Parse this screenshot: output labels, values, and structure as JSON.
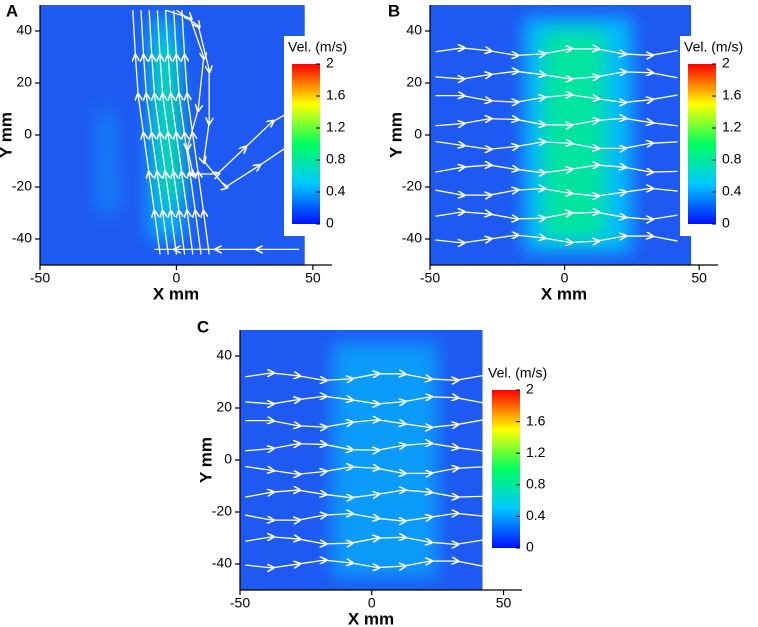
{
  "chart_data": [
    {
      "type": "contour",
      "panel_label": "A",
      "xlabel": "X mm",
      "ylabel": "Y mm",
      "xlim": [
        -50,
        57
      ],
      "ylim": [
        -50,
        50
      ],
      "xticks": [
        -50,
        0,
        50
      ],
      "yticks": [
        -40,
        -20,
        0,
        20,
        40
      ],
      "colorbar": {
        "title": "Vel. (m/s)",
        "lim": [
          0,
          2
        ],
        "ticks": [
          0,
          0.4,
          0.8,
          1.2,
          1.6,
          2
        ],
        "colormap": [
          "#0010ff",
          "#00c8ff",
          "#00ff60",
          "#ffff00",
          "#ff0000"
        ]
      }
    },
    {
      "type": "contour",
      "panel_label": "B",
      "xlabel": "X mm",
      "ylabel": "Y mm",
      "xlim": [
        -50,
        57
      ],
      "ylim": [
        -50,
        50
      ],
      "xticks": [
        -50,
        0,
        50
      ],
      "yticks": [
        -40,
        -20,
        0,
        20,
        40
      ],
      "colorbar": {
        "title": "Vel. (m/s)",
        "lim": [
          0,
          2
        ],
        "ticks": [
          0,
          0.4,
          0.8,
          1.2,
          1.6,
          2
        ],
        "colormap": [
          "#0010ff",
          "#00c8ff",
          "#00ff60",
          "#ffff00",
          "#ff0000"
        ]
      }
    },
    {
      "type": "contour",
      "panel_label": "C",
      "xlabel": "X mm",
      "ylabel": "Y mm",
      "xlim": [
        -50,
        57
      ],
      "ylim": [
        -50,
        50
      ],
      "xticks": [
        -50,
        0,
        50
      ],
      "yticks": [
        -40,
        -20,
        0,
        20,
        40
      ],
      "colorbar": {
        "title": "Vel. (m/s)",
        "lim": [
          0,
          2
        ],
        "ticks": [
          0,
          0.4,
          0.8,
          1.2,
          1.6,
          2
        ],
        "colormap": [
          "#0010ff",
          "#00c8ff",
          "#00ff60",
          "#ffff00",
          "#ff0000"
        ]
      }
    }
  ]
}
